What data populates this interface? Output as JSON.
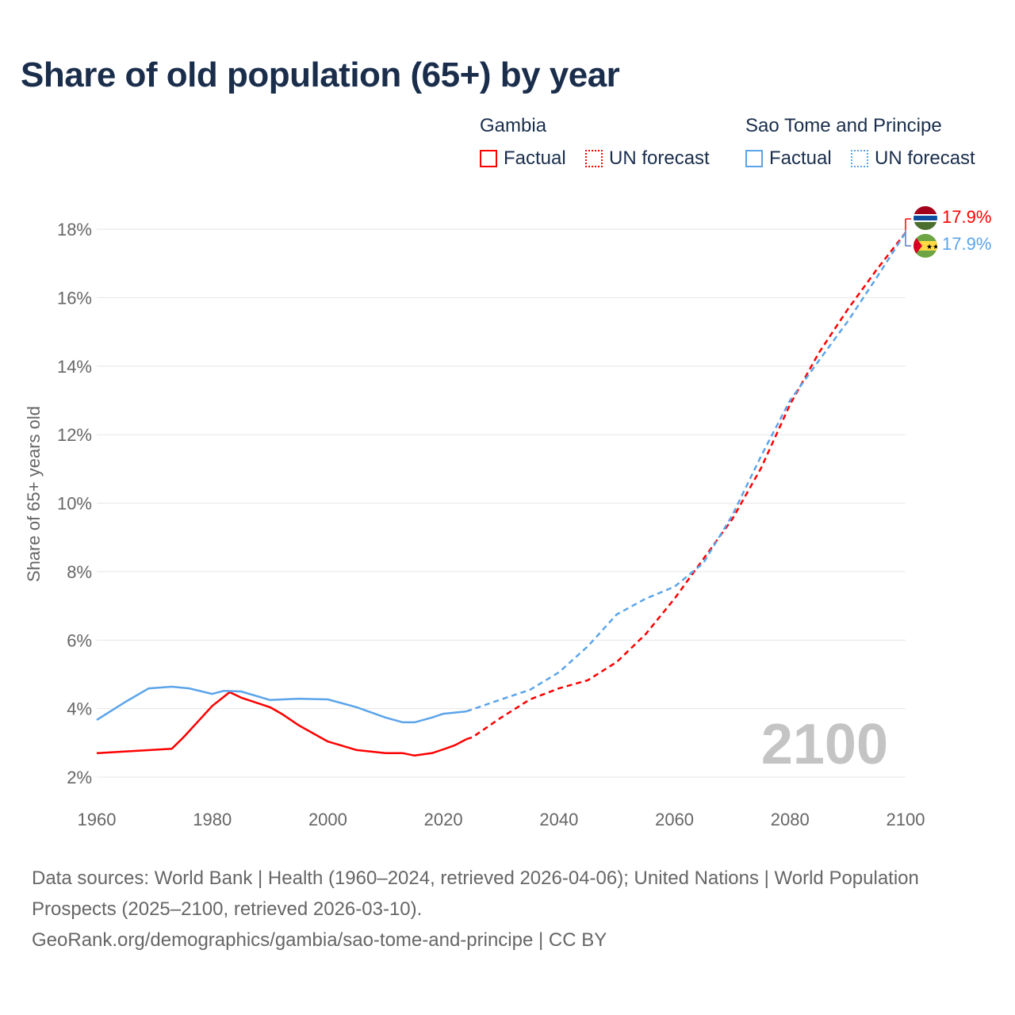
{
  "title": "Share of old population (65+) by year",
  "legend": {
    "groups": [
      {
        "name": "Gambia",
        "color": "#ff0000",
        "factual": "Factual",
        "forecast": "UN forecast"
      },
      {
        "name": "Sao Tome and Principe",
        "color": "#5ba4ea",
        "factual": "Factual",
        "forecast": "UN forecast"
      }
    ]
  },
  "year_watermark": "2100",
  "end_labels": [
    "17.9%",
    "17.9%"
  ],
  "source": {
    "line1": "Data sources: World Bank | Health (1960–2024, retrieved 2026-04-06); United Nations | World Population Prospects (2025–2100, retrieved 2026-03-10).",
    "line2": "GeoRank.org/demographics/gambia/sao-tome-and-principe | CC BY"
  },
  "chart_data": {
    "type": "line",
    "title": "Share of old population (65+) by year",
    "xlabel": "",
    "ylabel": "Share of 65+ years old",
    "xlim": [
      1960,
      2100
    ],
    "ylim": [
      2,
      18
    ],
    "x_ticks": [
      "1960",
      "1980",
      "2000",
      "2020",
      "2040",
      "2060",
      "2080",
      "2100"
    ],
    "y_ticks": [
      "2%",
      "4%",
      "6%",
      "8%",
      "10%",
      "12%",
      "14%",
      "16%",
      "18%"
    ],
    "grid": true,
    "legend_position": "top-right",
    "series": [
      {
        "name": "Gambia",
        "color": "#ff0000",
        "factual": [
          [
            1960,
            2.7
          ],
          [
            1973,
            2.83
          ],
          [
            1975,
            3.16
          ],
          [
            1980,
            4.08
          ],
          [
            1983,
            4.48
          ],
          [
            1985,
            4.32
          ],
          [
            1990,
            4.04
          ],
          [
            1992,
            3.85
          ],
          [
            1995,
            3.51
          ],
          [
            2000,
            3.04
          ],
          [
            2005,
            2.79
          ],
          [
            2010,
            2.7
          ],
          [
            2013,
            2.7
          ],
          [
            2015,
            2.63
          ],
          [
            2018,
            2.7
          ],
          [
            2020,
            2.81
          ],
          [
            2022,
            2.93
          ],
          [
            2024,
            3.11
          ]
        ],
        "forecast": [
          [
            2024,
            3.11
          ],
          [
            2025,
            3.16
          ],
          [
            2030,
            3.74
          ],
          [
            2035,
            4.27
          ],
          [
            2040,
            4.59
          ],
          [
            2045,
            4.83
          ],
          [
            2050,
            5.36
          ],
          [
            2055,
            6.17
          ],
          [
            2060,
            7.21
          ],
          [
            2065,
            8.37
          ],
          [
            2070,
            9.53
          ],
          [
            2075,
            11.03
          ],
          [
            2080,
            12.88
          ],
          [
            2085,
            14.39
          ],
          [
            2090,
            15.66
          ],
          [
            2095,
            16.82
          ],
          [
            2100,
            17.9
          ]
        ]
      },
      {
        "name": "Sao Tome and Principe",
        "color": "#5ba4ea",
        "factual": [
          [
            1960,
            3.67
          ],
          [
            1965,
            4.2
          ],
          [
            1969,
            4.59
          ],
          [
            1973,
            4.64
          ],
          [
            1976,
            4.59
          ],
          [
            1980,
            4.43
          ],
          [
            1982,
            4.52
          ],
          [
            1985,
            4.5
          ],
          [
            1990,
            4.25
          ],
          [
            1995,
            4.29
          ],
          [
            2000,
            4.27
          ],
          [
            2005,
            4.04
          ],
          [
            2010,
            3.74
          ],
          [
            2013,
            3.6
          ],
          [
            2015,
            3.6
          ],
          [
            2018,
            3.74
          ],
          [
            2020,
            3.85
          ],
          [
            2024,
            3.92
          ]
        ],
        "forecast": [
          [
            2024,
            3.92
          ],
          [
            2030,
            4.27
          ],
          [
            2035,
            4.55
          ],
          [
            2040,
            5.06
          ],
          [
            2045,
            5.82
          ],
          [
            2050,
            6.75
          ],
          [
            2055,
            7.21
          ],
          [
            2060,
            7.56
          ],
          [
            2065,
            8.25
          ],
          [
            2070,
            9.64
          ],
          [
            2075,
            11.38
          ],
          [
            2080,
            13.0
          ],
          [
            2085,
            14.16
          ],
          [
            2090,
            15.31
          ],
          [
            2095,
            16.59
          ],
          [
            2100,
            17.9
          ]
        ]
      }
    ]
  }
}
